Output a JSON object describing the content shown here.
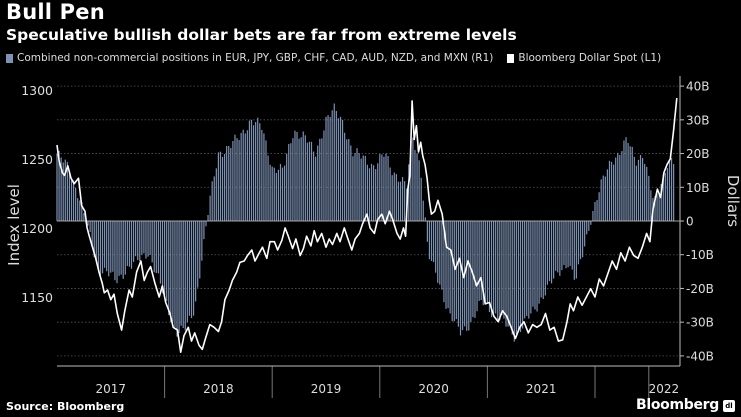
{
  "header": {
    "title": "Bull Pen",
    "subtitle": "Speculative bullish dollar bets are far from extreme levels"
  },
  "legend": [
    {
      "label": "Combined non-commercial positions in EUR, JPY, GBP, CHF, CAD, AUD, NZD, and MXN (R1)",
      "color": "#7d93b5"
    },
    {
      "label": "Bloomberg Dollar Spot (L1)",
      "color": "#ffffff"
    }
  ],
  "footer": {
    "source": "Source: Bloomberg",
    "brand": "Bloomberg",
    "brand_badge": "dl"
  },
  "chart_data": {
    "type": "bar+line",
    "x_labels": [
      "2017",
      "2018",
      "2019",
      "2020",
      "2021",
      "2022"
    ],
    "x_range": [
      2016.5,
      2022.29
    ],
    "year_dividers": [
      2017.5,
      2018.5,
      2019.5,
      2020.5,
      2021.5,
      2022.0
    ],
    "ylabel_left": "Index level",
    "ylabel_right": "Dollars",
    "left_axis": {
      "ticks": [
        1150,
        1200,
        1250,
        1300
      ],
      "tick_labels": [
        "1150",
        "1200",
        "1250",
        "1300"
      ],
      "range": [
        1100,
        1310
      ]
    },
    "right_axis": {
      "ticks": [
        -40,
        -30,
        -20,
        -10,
        0,
        10,
        20,
        30,
        40
      ],
      "tick_labels": [
        "-40B",
        "-30B",
        "-20B",
        "-10B",
        "0",
        "10B",
        "20B",
        "30B",
        "40B"
      ],
      "range": [
        -43,
        43
      ]
    },
    "series": [
      {
        "name": "Combined non-commercial positions in EUR, JPY, GBP, CHF, CAD, AUD, NZD, and MXN (R1)",
        "type": "bar",
        "axis": "right",
        "units": "USD billions",
        "points": [
          [
            2016.5,
            20
          ],
          [
            2016.6,
            16
          ],
          [
            2016.7,
            8
          ],
          [
            2016.8,
            -4
          ],
          [
            2016.88,
            -14
          ],
          [
            2016.96,
            -15
          ],
          [
            2017.05,
            -18
          ],
          [
            2017.15,
            -14
          ],
          [
            2017.25,
            -12
          ],
          [
            2017.35,
            -9
          ],
          [
            2017.45,
            -18
          ],
          [
            2017.55,
            -28
          ],
          [
            2017.62,
            -33
          ],
          [
            2017.7,
            -32
          ],
          [
            2017.78,
            -26
          ],
          [
            2017.85,
            -10
          ],
          [
            2017.92,
            6
          ],
          [
            2018.0,
            20
          ],
          [
            2018.1,
            22
          ],
          [
            2018.2,
            25
          ],
          [
            2018.3,
            30
          ],
          [
            2018.4,
            28
          ],
          [
            2018.5,
            16
          ],
          [
            2018.6,
            15
          ],
          [
            2018.7,
            27
          ],
          [
            2018.8,
            25
          ],
          [
            2018.9,
            20
          ],
          [
            2019.0,
            30
          ],
          [
            2019.08,
            33
          ],
          [
            2019.15,
            30
          ],
          [
            2019.25,
            20
          ],
          [
            2019.35,
            19
          ],
          [
            2019.45,
            16
          ],
          [
            2019.55,
            20
          ],
          [
            2019.62,
            15
          ],
          [
            2019.7,
            12
          ],
          [
            2019.75,
            10
          ],
          [
            2019.8,
            26
          ],
          [
            2019.88,
            16
          ],
          [
            2019.95,
            -10
          ],
          [
            2020.05,
            -18
          ],
          [
            2020.15,
            -28
          ],
          [
            2020.25,
            -33
          ],
          [
            2020.35,
            -30
          ],
          [
            2020.45,
            -24
          ],
          [
            2020.55,
            -27
          ],
          [
            2020.65,
            -30
          ],
          [
            2020.75,
            -34
          ],
          [
            2020.85,
            -30
          ],
          [
            2020.95,
            -26
          ],
          [
            2021.05,
            -20
          ],
          [
            2021.15,
            -16
          ],
          [
            2021.25,
            -12
          ],
          [
            2021.32,
            -18
          ],
          [
            2021.4,
            -8
          ],
          [
            2021.47,
            2
          ],
          [
            2021.55,
            10
          ],
          [
            2021.65,
            18
          ],
          [
            2021.72,
            20
          ],
          [
            2021.8,
            24
          ],
          [
            2021.88,
            18
          ],
          [
            2021.95,
            20
          ],
          [
            2022.0,
            12
          ],
          [
            2022.05,
            5
          ],
          [
            2022.12,
            12
          ],
          [
            2022.18,
            18
          ],
          [
            2022.24,
            17
          ]
        ]
      },
      {
        "name": "Bloomberg Dollar Spot (L1)",
        "type": "line",
        "axis": "left",
        "units": "index level",
        "points": [
          [
            2016.5,
            1260
          ],
          [
            2016.52,
            1248
          ],
          [
            2016.55,
            1240
          ],
          [
            2016.57,
            1238
          ],
          [
            2016.6,
            1245
          ],
          [
            2016.63,
            1236
          ],
          [
            2016.66,
            1232
          ],
          [
            2016.7,
            1236
          ],
          [
            2016.73,
            1216
          ],
          [
            2016.76,
            1212
          ],
          [
            2016.78,
            1200
          ],
          [
            2016.8,
            1194
          ],
          [
            2016.83,
            1186
          ],
          [
            2016.86,
            1178
          ],
          [
            2016.89,
            1168
          ],
          [
            2016.92,
            1160
          ],
          [
            2016.94,
            1153
          ],
          [
            2016.97,
            1155
          ],
          [
            2017.0,
            1148
          ],
          [
            2017.03,
            1152
          ],
          [
            2017.06,
            1138
          ],
          [
            2017.1,
            1126
          ],
          [
            2017.13,
            1140
          ],
          [
            2017.17,
            1155
          ],
          [
            2017.2,
            1150
          ],
          [
            2017.24,
            1168
          ],
          [
            2017.28,
            1176
          ],
          [
            2017.31,
            1162
          ],
          [
            2017.34,
            1168
          ],
          [
            2017.37,
            1172
          ],
          [
            2017.41,
            1160
          ],
          [
            2017.45,
            1150
          ],
          [
            2017.48,
            1158
          ],
          [
            2017.51,
            1146
          ],
          [
            2017.55,
            1138
          ],
          [
            2017.58,
            1128
          ],
          [
            2017.62,
            1126
          ],
          [
            2017.65,
            1110
          ],
          [
            2017.68,
            1122
          ],
          [
            2017.72,
            1128
          ],
          [
            2017.75,
            1118
          ],
          [
            2017.78,
            1124
          ],
          [
            2017.82,
            1115
          ],
          [
            2017.85,
            1112
          ],
          [
            2017.88,
            1120
          ],
          [
            2017.92,
            1130
          ],
          [
            2017.96,
            1128
          ],
          [
            2018.0,
            1125
          ],
          [
            2018.03,
            1132
          ],
          [
            2018.06,
            1148
          ],
          [
            2018.1,
            1155
          ],
          [
            2018.13,
            1162
          ],
          [
            2018.17,
            1168
          ],
          [
            2018.2,
            1175
          ],
          [
            2018.24,
            1176
          ],
          [
            2018.27,
            1180
          ],
          [
            2018.31,
            1184
          ],
          [
            2018.34,
            1176
          ],
          [
            2018.38,
            1182
          ],
          [
            2018.41,
            1186
          ],
          [
            2018.45,
            1178
          ],
          [
            2018.48,
            1190
          ],
          [
            2018.52,
            1190
          ],
          [
            2018.55,
            1184
          ],
          [
            2018.59,
            1191
          ],
          [
            2018.62,
            1200
          ],
          [
            2018.65,
            1194
          ],
          [
            2018.69,
            1185
          ],
          [
            2018.72,
            1192
          ],
          [
            2018.76,
            1180
          ],
          [
            2018.79,
            1185
          ],
          [
            2018.82,
            1194
          ],
          [
            2018.86,
            1187
          ],
          [
            2018.89,
            1198
          ],
          [
            2018.92,
            1190
          ],
          [
            2018.96,
            1196
          ],
          [
            2019.0,
            1186
          ],
          [
            2019.03,
            1192
          ],
          [
            2019.06,
            1188
          ],
          [
            2019.1,
            1196
          ],
          [
            2019.13,
            1190
          ],
          [
            2019.17,
            1200
          ],
          [
            2019.2,
            1193
          ],
          [
            2019.24,
            1184
          ],
          [
            2019.27,
            1192
          ],
          [
            2019.31,
            1196
          ],
          [
            2019.34,
            1203
          ],
          [
            2019.38,
            1210
          ],
          [
            2019.41,
            1200
          ],
          [
            2019.45,
            1196
          ],
          [
            2019.48,
            1206
          ],
          [
            2019.52,
            1210
          ],
          [
            2019.55,
            1203
          ],
          [
            2019.59,
            1212
          ],
          [
            2019.62,
            1206
          ],
          [
            2019.66,
            1196
          ],
          [
            2019.69,
            1192
          ],
          [
            2019.72,
            1200
          ],
          [
            2019.74,
            1194
          ],
          [
            2019.76,
            1228
          ],
          [
            2019.78,
            1238
          ],
          [
            2019.8,
            1292
          ],
          [
            2019.82,
            1264
          ],
          [
            2019.84,
            1274
          ],
          [
            2019.86,
            1255
          ],
          [
            2019.88,
            1262
          ],
          [
            2019.9,
            1252
          ],
          [
            2019.92,
            1246
          ],
          [
            2019.94,
            1236
          ],
          [
            2019.96,
            1220
          ],
          [
            2019.98,
            1210
          ],
          [
            2020.01,
            1212
          ],
          [
            2020.04,
            1220
          ],
          [
            2020.08,
            1210
          ],
          [
            2020.12,
            1186
          ],
          [
            2020.16,
            1184
          ],
          [
            2020.2,
            1170
          ],
          [
            2020.24,
            1178
          ],
          [
            2020.28,
            1164
          ],
          [
            2020.32,
            1176
          ],
          [
            2020.36,
            1168
          ],
          [
            2020.4,
            1158
          ],
          [
            2020.44,
            1164
          ],
          [
            2020.48,
            1145
          ],
          [
            2020.52,
            1146
          ],
          [
            2020.56,
            1136
          ],
          [
            2020.6,
            1132
          ],
          [
            2020.64,
            1140
          ],
          [
            2020.68,
            1136
          ],
          [
            2020.72,
            1128
          ],
          [
            2020.76,
            1120
          ],
          [
            2020.8,
            1128
          ],
          [
            2020.84,
            1132
          ],
          [
            2020.88,
            1124
          ],
          [
            2020.92,
            1130
          ],
          [
            2020.96,
            1128
          ],
          [
            2021.0,
            1130
          ],
          [
            2021.04,
            1138
          ],
          [
            2021.08,
            1126
          ],
          [
            2021.12,
            1128
          ],
          [
            2021.16,
            1118
          ],
          [
            2021.2,
            1119
          ],
          [
            2021.24,
            1132
          ],
          [
            2021.27,
            1145
          ],
          [
            2021.3,
            1140
          ],
          [
            2021.34,
            1150
          ],
          [
            2021.38,
            1144
          ],
          [
            2021.42,
            1150
          ],
          [
            2021.46,
            1156
          ],
          [
            2021.5,
            1150
          ],
          [
            2021.54,
            1163
          ],
          [
            2021.58,
            1158
          ],
          [
            2021.62,
            1167
          ],
          [
            2021.66,
            1176
          ],
          [
            2021.7,
            1170
          ],
          [
            2021.74,
            1182
          ],
          [
            2021.78,
            1176
          ],
          [
            2021.82,
            1186
          ],
          [
            2021.86,
            1180
          ],
          [
            2021.9,
            1178
          ],
          [
            2021.94,
            1186
          ],
          [
            2021.98,
            1196
          ],
          [
            2022.01,
            1190
          ],
          [
            2022.04,
            1214
          ],
          [
            2022.08,
            1228
          ],
          [
            2022.11,
            1222
          ],
          [
            2022.14,
            1240
          ],
          [
            2022.17,
            1246
          ],
          [
            2022.2,
            1250
          ],
          [
            2022.23,
            1270
          ],
          [
            2022.26,
            1294
          ]
        ]
      }
    ],
    "grid": "dotted horizontal",
    "legend_position": "top-left"
  }
}
